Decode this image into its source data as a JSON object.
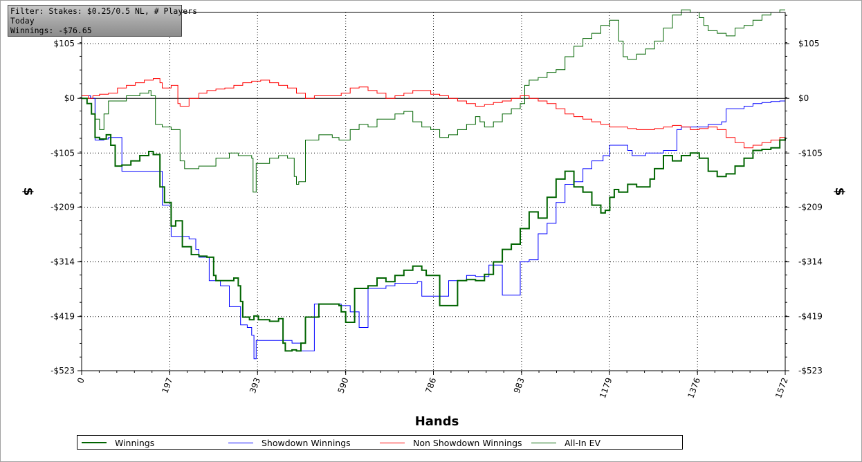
{
  "info": {
    "filter": "Filter: Stakes: $0.25/0.5 NL, # Players",
    "period": "Today",
    "winnings": "Winnings: -$76.65"
  },
  "chart_data": {
    "type": "line",
    "xlabel": "Hands",
    "ylabel": "$",
    "xlim": [
      0,
      1572
    ],
    "ylim": [
      -523,
      165
    ],
    "x_ticks": [
      0,
      197,
      393,
      590,
      786,
      983,
      1179,
      1376,
      1572
    ],
    "x_tick_labels": [
      "0",
      "197",
      "393",
      "590",
      "786",
      "983",
      "1179",
      "1376",
      "1572"
    ],
    "y_ticks": [
      105,
      0,
      -105,
      -209,
      -314,
      -419,
      -523
    ],
    "y_tick_labels": [
      "$105",
      "$0",
      "-$105",
      "-$209",
      "-$314",
      "-$419",
      "-$523"
    ],
    "grid": true,
    "legend_position": "bottom",
    "series": [
      {
        "name": "Winnings",
        "color": "#006400",
        "width": 2,
        "x": [
          0,
          12,
          22,
          30,
          40,
          55,
          65,
          75,
          90,
          110,
          130,
          150,
          160,
          175,
          185,
          200,
          210,
          225,
          245,
          262,
          280,
          295,
          300,
          320,
          340,
          350,
          355,
          360,
          375,
          385,
          395,
          420,
          440,
          450,
          455,
          470,
          480,
          490,
          500,
          530,
          560,
          575,
          580,
          590,
          610,
          640,
          660,
          680,
          700,
          720,
          740,
          760,
          770,
          800,
          820,
          840,
          860,
          880,
          900,
          920,
          940,
          960,
          980,
          1000,
          1020,
          1040,
          1060,
          1080,
          1100,
          1120,
          1140,
          1160,
          1170,
          1180,
          1190,
          1200,
          1220,
          1240,
          1260,
          1270,
          1280,
          1300,
          1320,
          1340,
          1360,
          1380,
          1400,
          1420,
          1440,
          1460,
          1480,
          1500,
          1520,
          1540,
          1560,
          1572
        ],
        "y": [
          0,
          -10,
          -30,
          -75,
          -78,
          -70,
          -90,
          -130,
          -128,
          -120,
          -110,
          -102,
          -108,
          -170,
          -200,
          -245,
          -235,
          -285,
          -300,
          -303,
          -305,
          -340,
          -350,
          -350,
          -345,
          -360,
          -390,
          -420,
          -425,
          -418,
          -425,
          -428,
          -423,
          -470,
          -485,
          -483,
          -485,
          -470,
          -420,
          -395,
          -395,
          -398,
          -410,
          -430,
          -365,
          -360,
          -345,
          -352,
          -340,
          -330,
          -322,
          -330,
          -340,
          -398,
          -398,
          -350,
          -348,
          -350,
          -338,
          -314,
          -290,
          -280,
          -250,
          -218,
          -230,
          -190,
          -155,
          -140,
          -170,
          -180,
          -205,
          -220,
          -215,
          -190,
          -175,
          -180,
          -165,
          -170,
          -170,
          -155,
          -135,
          -110,
          -120,
          -110,
          -105,
          -115,
          -140,
          -150,
          -145,
          -130,
          -115,
          -100,
          -98,
          -95,
          -80,
          -75
        ]
      },
      {
        "name": "Showdown Winnings",
        "color": "#0000ff",
        "width": 1,
        "x": [
          0,
          20,
          30,
          50,
          60,
          90,
          120,
          140,
          160,
          165,
          180,
          200,
          240,
          255,
          262,
          285,
          310,
          330,
          355,
          370,
          380,
          385,
          390,
          400,
          430,
          470,
          490,
          520,
          560,
          580,
          600,
          620,
          640,
          680,
          700,
          720,
          750,
          760,
          800,
          820,
          860,
          880,
          910,
          940,
          960,
          980,
          1000,
          1020,
          1040,
          1060,
          1080,
          1100,
          1120,
          1140,
          1160,
          1165,
          1180,
          1200,
          1220,
          1230,
          1260,
          1300,
          1330,
          1340,
          1360,
          1380,
          1400,
          1430,
          1440,
          1460,
          1480,
          1500,
          1520,
          1540,
          1560,
          1572
        ],
        "y": [
          5,
          0,
          -80,
          -78,
          -75,
          -140,
          -140,
          -140,
          -140,
          -140,
          -205,
          -265,
          -270,
          -290,
          -305,
          -350,
          -360,
          -400,
          -435,
          -440,
          -455,
          -500,
          -465,
          -465,
          -465,
          -470,
          -485,
          -395,
          -395,
          -398,
          -410,
          -440,
          -365,
          -360,
          -355,
          -355,
          -352,
          -380,
          -380,
          -350,
          -340,
          -342,
          -320,
          -378,
          -378,
          -314,
          -310,
          -260,
          -240,
          -200,
          -165,
          -160,
          -135,
          -120,
          -120,
          -110,
          -90,
          -90,
          -100,
          -110,
          -105,
          -100,
          -60,
          -55,
          -55,
          -55,
          -50,
          -45,
          -20,
          -20,
          -15,
          -10,
          -8,
          -6,
          -5,
          -3
        ]
      },
      {
        "name": "Non Showdown Winnings",
        "color": "#ff0000",
        "width": 1,
        "x": [
          0,
          15,
          25,
          40,
          60,
          80,
          100,
          120,
          140,
          160,
          175,
          180,
          200,
          215,
          220,
          240,
          262,
          280,
          300,
          320,
          340,
          360,
          380,
          400,
          420,
          440,
          460,
          480,
          500,
          520,
          540,
          560,
          580,
          600,
          620,
          640,
          660,
          680,
          700,
          720,
          740,
          760,
          780,
          800,
          820,
          840,
          860,
          880,
          900,
          920,
          940,
          960,
          980,
          1000,
          1020,
          1040,
          1060,
          1080,
          1100,
          1120,
          1140,
          1160,
          1180,
          1200,
          1220,
          1240,
          1260,
          1280,
          1300,
          1320,
          1340,
          1360,
          1380,
          1400,
          1420,
          1440,
          1460,
          1480,
          1500,
          1520,
          1540,
          1560,
          1572
        ],
        "y": [
          5,
          0,
          5,
          8,
          10,
          20,
          25,
          30,
          35,
          38,
          30,
          20,
          25,
          -10,
          -15,
          0,
          10,
          15,
          18,
          20,
          25,
          30,
          33,
          35,
          30,
          25,
          20,
          10,
          0,
          5,
          5,
          5,
          10,
          20,
          22,
          15,
          10,
          0,
          5,
          10,
          15,
          15,
          8,
          5,
          0,
          -5,
          -10,
          -15,
          -12,
          -8,
          -5,
          0,
          5,
          0,
          -5,
          -10,
          -20,
          -30,
          -35,
          -40,
          -45,
          -50,
          -55,
          -55,
          -58,
          -60,
          -60,
          -58,
          -55,
          -52,
          -55,
          -60,
          -58,
          -55,
          -60,
          -75,
          -85,
          -95,
          -90,
          -85,
          -80,
          -75,
          -70
        ]
      },
      {
        "name": "All-In EV",
        "color": "#006400",
        "width": 1,
        "x": [
          0,
          20,
          30,
          40,
          50,
          60,
          80,
          100,
          130,
          140,
          150,
          155,
          165,
          180,
          200,
          220,
          230,
          262,
          300,
          330,
          350,
          380,
          383,
          390,
          420,
          440,
          460,
          475,
          480,
          485,
          500,
          530,
          560,
          575,
          600,
          620,
          640,
          660,
          700,
          720,
          740,
          760,
          780,
          800,
          820,
          840,
          860,
          880,
          890,
          900,
          920,
          940,
          960,
          980,
          990,
          1000,
          1020,
          1040,
          1060,
          1080,
          1100,
          1120,
          1140,
          1160,
          1180,
          1200,
          1210,
          1220,
          1240,
          1260,
          1280,
          1300,
          1320,
          1340,
          1360,
          1380,
          1390,
          1400,
          1420,
          1440,
          1460,
          1480,
          1500,
          1520,
          1540,
          1560,
          1572
        ],
        "y": [
          5,
          0,
          -40,
          -60,
          -30,
          -5,
          -5,
          5,
          10,
          10,
          15,
          5,
          -50,
          -55,
          -60,
          -120,
          -135,
          -130,
          -115,
          -105,
          -110,
          -115,
          -180,
          -125,
          -115,
          -110,
          -115,
          -150,
          -165,
          -160,
          -80,
          -70,
          -75,
          -80,
          -60,
          -50,
          -55,
          -40,
          -30,
          -25,
          -45,
          -55,
          -60,
          -75,
          -70,
          -60,
          -50,
          -35,
          -45,
          -55,
          -45,
          -30,
          -20,
          -10,
          25,
          35,
          40,
          50,
          55,
          80,
          100,
          115,
          125,
          140,
          150,
          110,
          80,
          75,
          85,
          95,
          110,
          135,
          160,
          170,
          165,
          155,
          140,
          130,
          125,
          120,
          135,
          140,
          150,
          160,
          165,
          170,
          170
        ]
      }
    ]
  },
  "legend": {
    "items": [
      "Winnings",
      "Showdown Winnings",
      "Non Showdown Winnings",
      "All-In EV"
    ]
  }
}
